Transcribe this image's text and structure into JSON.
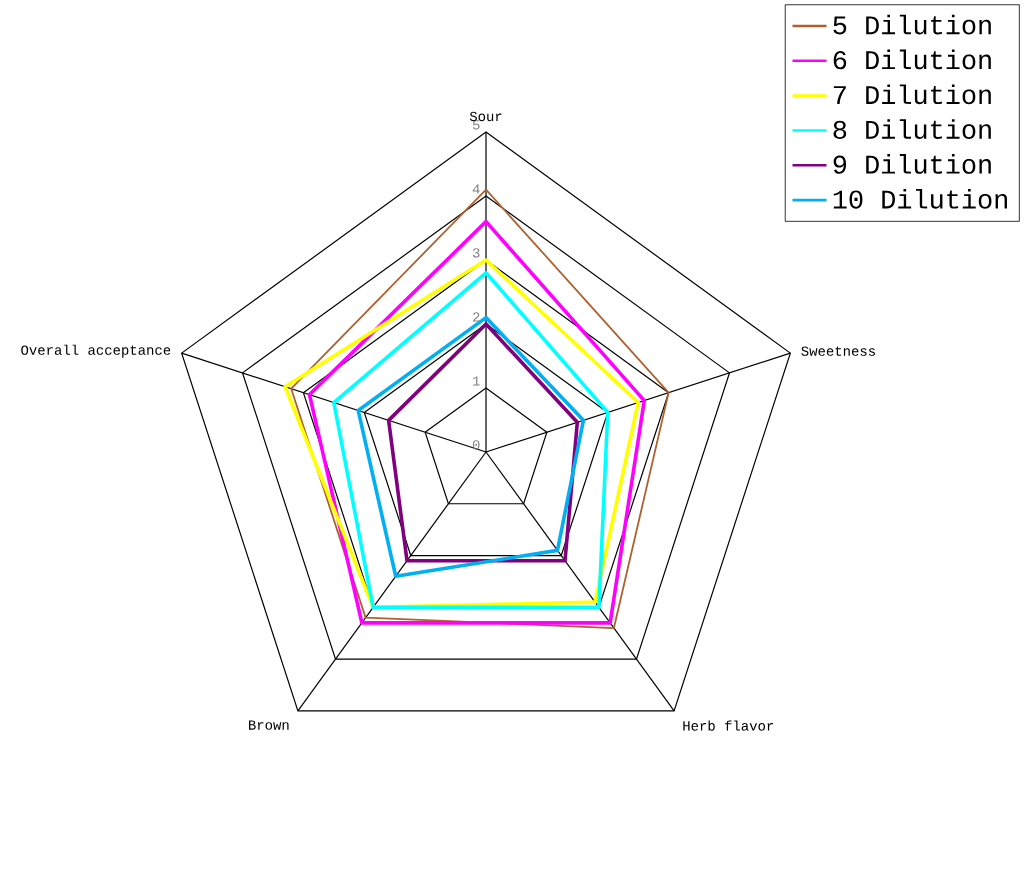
{
  "chart_data": {
    "type": "radar",
    "categories": [
      "Sour",
      "Sweetness",
      "Herb flavor",
      "Brown",
      "Overall  acceptance"
    ],
    "ylim": [
      0,
      5
    ],
    "yticks": [
      0,
      1,
      2,
      3,
      4,
      5
    ],
    "grid": true,
    "legend": "top right",
    "marker": "none",
    "line_style": "solid",
    "series": [
      {
        "name": "5 Dilution",
        "color": "#b0602e",
        "values": [
          4.1,
          3.0,
          3.4,
          3.2,
          3.2
        ]
      },
      {
        "name": "6 Dilution",
        "color": "#ff00ff",
        "values": [
          3.6,
          2.6,
          3.3,
          3.3,
          2.9
        ]
      },
      {
        "name": "7 Dilution",
        "color": "#ffff00",
        "values": [
          3.0,
          2.5,
          2.9,
          3.0,
          3.3
        ]
      },
      {
        "name": "8 Dilution",
        "color": "#00ffff",
        "values": [
          2.8,
          2.0,
          3.0,
          3.0,
          2.5
        ]
      },
      {
        "name": "9 Dilution",
        "color": "#800080",
        "values": [
          2.0,
          1.5,
          2.1,
          2.1,
          1.6
        ]
      },
      {
        "name": "10 Dilution",
        "color": "#00b0f0",
        "values": [
          2.1,
          1.6,
          1.9,
          2.4,
          2.1
        ]
      }
    ]
  }
}
